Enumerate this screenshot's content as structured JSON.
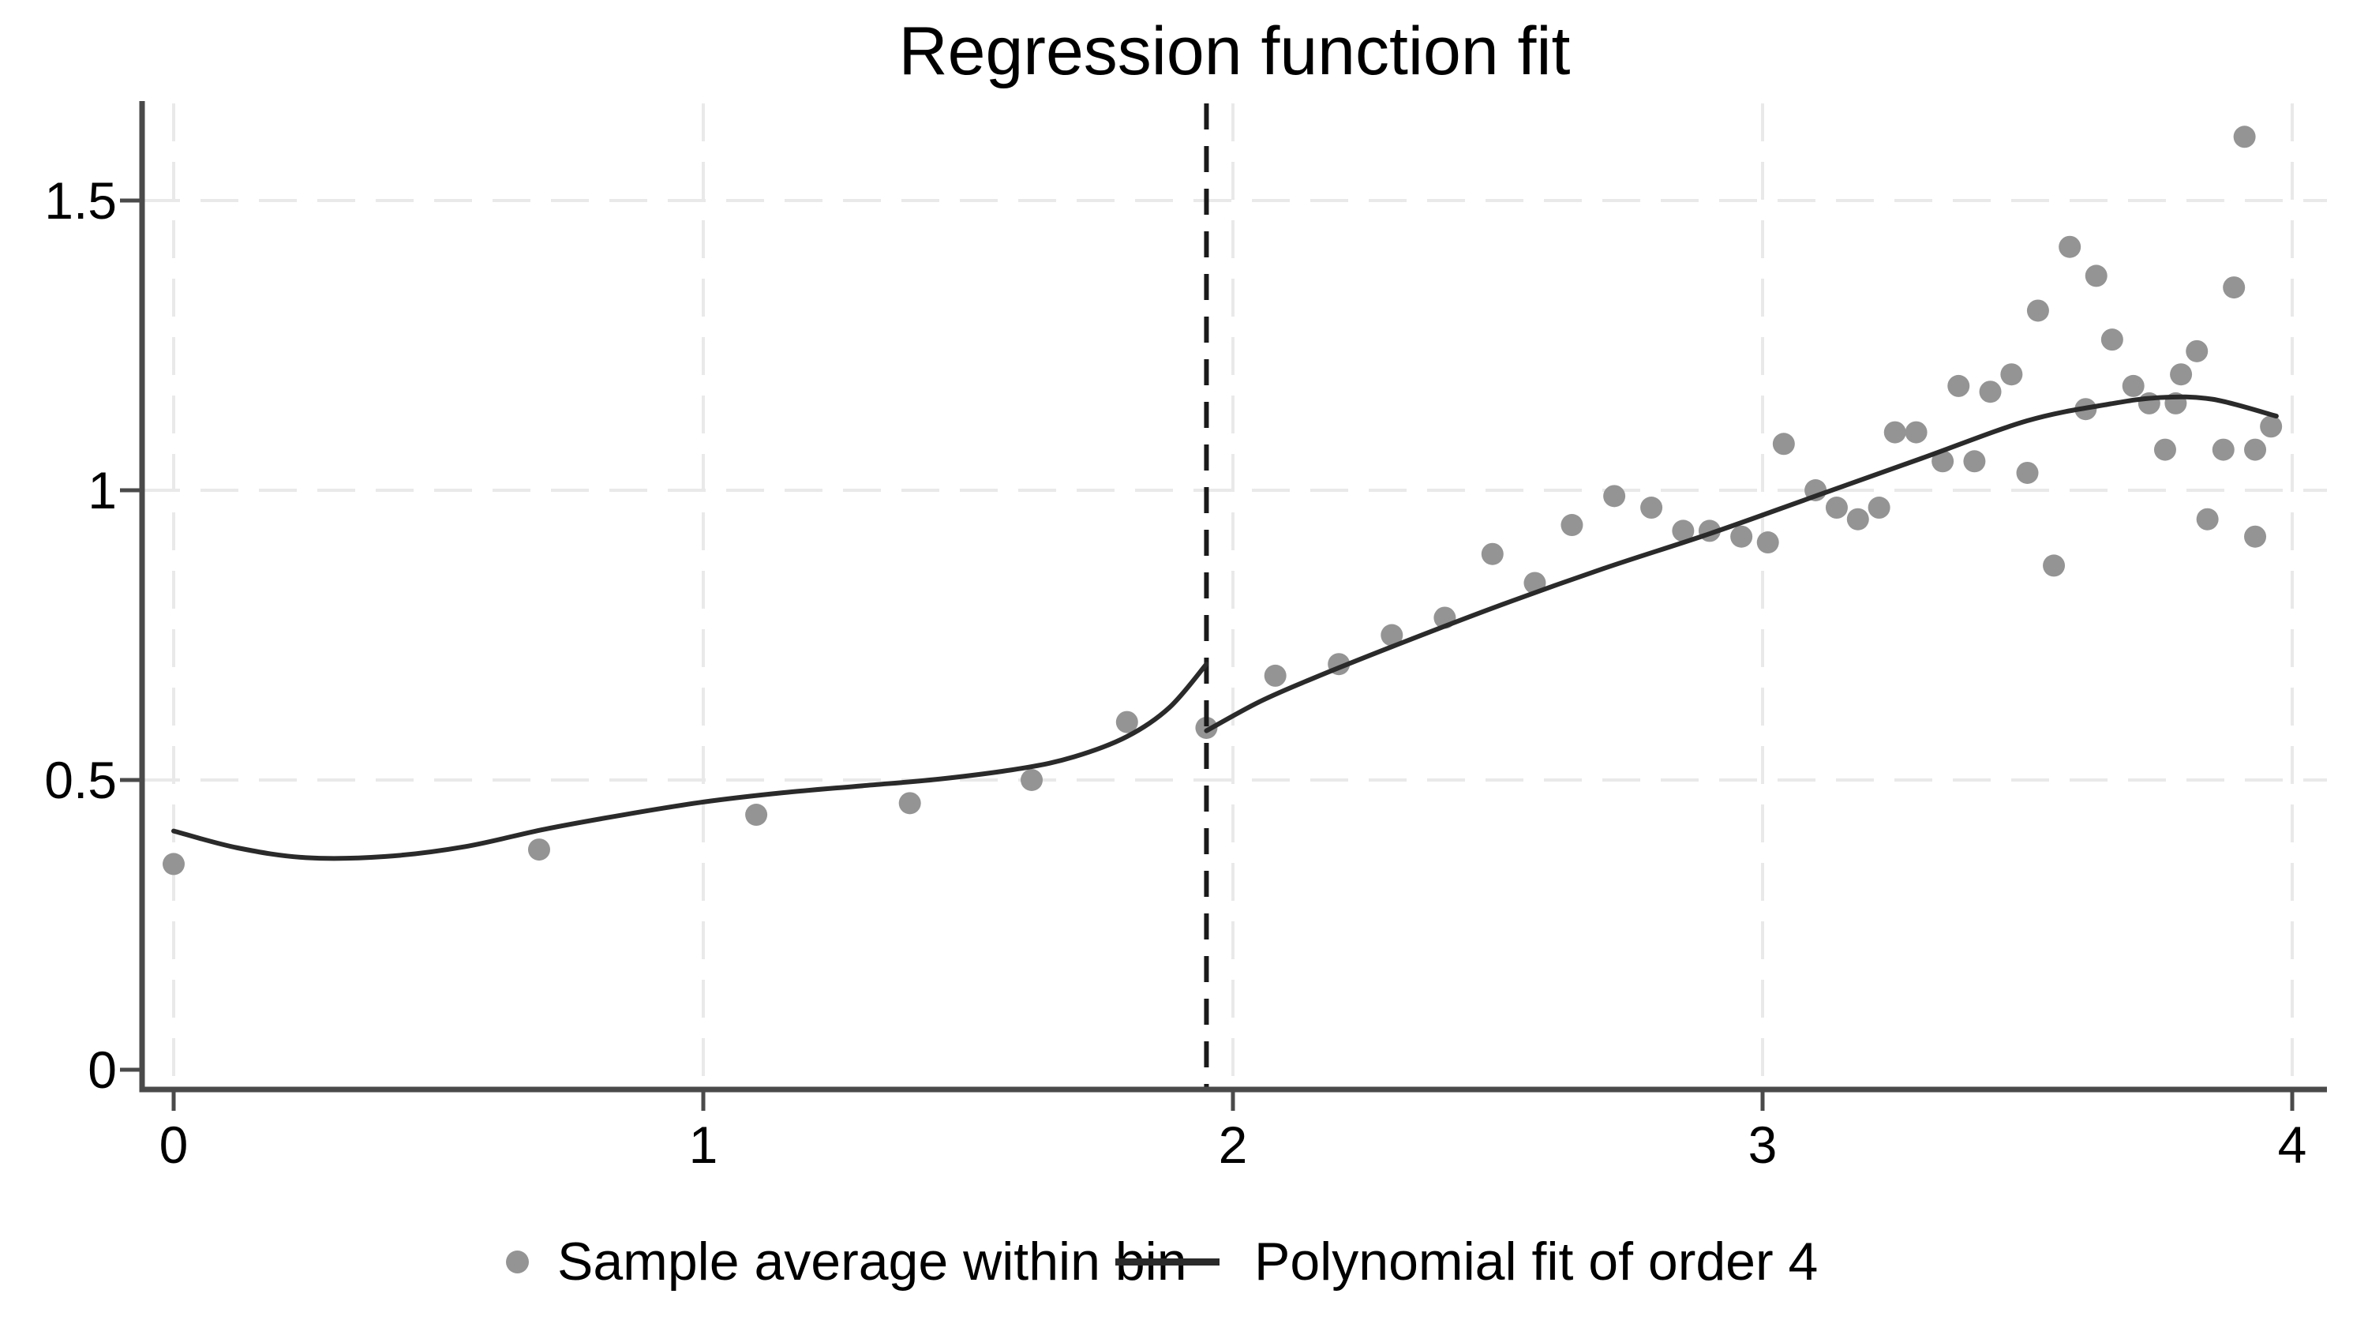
{
  "title": "Regression function fit",
  "colors": {
    "background": "#ffffff",
    "marker": "#949494",
    "fit_line": "#2a2a2a",
    "axis": "#4a4a4a",
    "gridline": "#e9e9e9",
    "cutoff_line": "#1a1a1a",
    "text": "#000000"
  },
  "chart_data": {
    "type": "scatter",
    "title": "Regression function fit",
    "xlabel": "",
    "ylabel": "",
    "xlim": [
      0,
      4
    ],
    "ylim": [
      0,
      1.65
    ],
    "grid": true,
    "legend_position": "bottom",
    "x_ticks": [
      {
        "value": 0,
        "label": "0"
      },
      {
        "value": 1,
        "label": "1"
      },
      {
        "value": 2,
        "label": "2"
      },
      {
        "value": 3,
        "label": "3"
      },
      {
        "value": 4,
        "label": "4"
      }
    ],
    "y_ticks": [
      {
        "value": 0,
        "label": "0"
      },
      {
        "value": 0.5,
        "label": "0.5"
      },
      {
        "value": 1,
        "label": "1"
      },
      {
        "value": 1.5,
        "label": "1.5"
      }
    ],
    "y_gridline_values": [
      0.5,
      1,
      1.5
    ],
    "x_gridline_values": [
      0,
      1,
      2,
      3,
      4
    ],
    "cutoff_line": {
      "x": 1.95,
      "style": "dashed",
      "color": "#1a1a1a"
    },
    "series": [
      {
        "name": "Sample average within bin",
        "type": "scatter",
        "marker_color": "#949494",
        "points": [
          [
            0.0,
            0.355
          ],
          [
            0.69,
            0.38
          ],
          [
            1.1,
            0.44
          ],
          [
            1.39,
            0.46
          ],
          [
            1.62,
            0.5
          ],
          [
            1.8,
            0.6
          ],
          [
            1.95,
            0.59
          ],
          [
            2.08,
            0.68
          ],
          [
            2.2,
            0.7
          ],
          [
            2.3,
            0.75
          ],
          [
            2.4,
            0.78
          ],
          [
            2.49,
            0.89
          ],
          [
            2.57,
            0.84
          ],
          [
            2.64,
            0.94
          ],
          [
            2.72,
            0.99
          ],
          [
            2.79,
            0.97
          ],
          [
            2.85,
            0.93
          ],
          [
            2.9,
            0.93
          ],
          [
            2.96,
            0.92
          ],
          [
            3.01,
            0.91
          ],
          [
            3.04,
            1.08
          ],
          [
            3.1,
            1.0
          ],
          [
            3.14,
            0.97
          ],
          [
            3.18,
            0.95
          ],
          [
            3.22,
            0.97
          ],
          [
            3.25,
            1.1
          ],
          [
            3.29,
            1.1
          ],
          [
            3.34,
            1.05
          ],
          [
            3.4,
            1.05
          ],
          [
            3.37,
            1.18
          ],
          [
            3.43,
            1.17
          ],
          [
            3.47,
            1.2
          ],
          [
            3.5,
            1.03
          ],
          [
            3.52,
            1.31
          ],
          [
            3.55,
            0.87
          ],
          [
            3.58,
            1.42
          ],
          [
            3.61,
            1.14
          ],
          [
            3.63,
            1.37
          ],
          [
            3.66,
            1.26
          ],
          [
            3.7,
            1.18
          ],
          [
            3.73,
            1.15
          ],
          [
            3.76,
            1.07
          ],
          [
            3.78,
            1.15
          ],
          [
            3.79,
            1.2
          ],
          [
            3.82,
            1.24
          ],
          [
            3.84,
            0.95
          ],
          [
            3.87,
            1.07
          ],
          [
            3.89,
            1.35
          ],
          [
            3.91,
            1.61
          ],
          [
            3.93,
            0.92
          ],
          [
            3.93,
            1.07
          ],
          [
            3.96,
            1.11
          ]
        ]
      },
      {
        "name": "Polynomial fit of order 4",
        "type": "line",
        "line_color": "#2a2a2a",
        "segments": [
          [
            [
              0.0,
              0.412
            ],
            [
              0.12,
              0.383
            ],
            [
              0.25,
              0.366
            ],
            [
              0.4,
              0.368
            ],
            [
              0.55,
              0.385
            ],
            [
              0.7,
              0.415
            ],
            [
              0.85,
              0.44
            ],
            [
              1.0,
              0.462
            ],
            [
              1.15,
              0.478
            ],
            [
              1.3,
              0.49
            ],
            [
              1.45,
              0.502
            ],
            [
              1.6,
              0.52
            ],
            [
              1.7,
              0.54
            ],
            [
              1.8,
              0.575
            ],
            [
              1.88,
              0.625
            ],
            [
              1.95,
              0.7
            ]
          ],
          [
            [
              1.95,
              0.585
            ],
            [
              2.05,
              0.635
            ],
            [
              2.15,
              0.675
            ],
            [
              2.3,
              0.73
            ],
            [
              2.5,
              0.8
            ],
            [
              2.7,
              0.865
            ],
            [
              2.9,
              0.925
            ],
            [
              3.1,
              0.99
            ],
            [
              3.3,
              1.055
            ],
            [
              3.5,
              1.12
            ],
            [
              3.65,
              1.148
            ],
            [
              3.75,
              1.16
            ],
            [
              3.85,
              1.157
            ],
            [
              3.97,
              1.128
            ]
          ]
        ]
      }
    ]
  }
}
